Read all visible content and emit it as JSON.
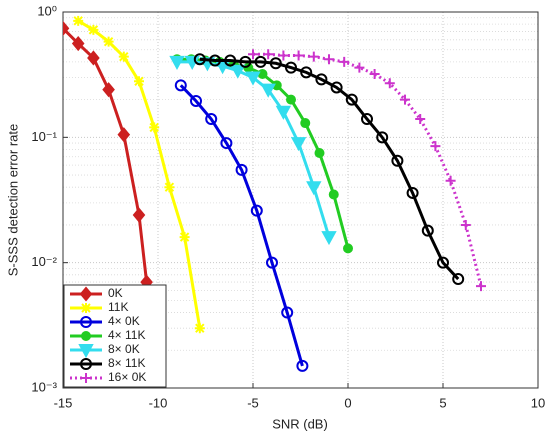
{
  "chart_data": {
    "type": "line",
    "xlabel": "SNR (dB)",
    "ylabel": "S-SSS detection error rate",
    "xlim": [
      -15,
      10
    ],
    "xticks": [
      -15,
      -10,
      -5,
      0,
      5,
      10
    ],
    "ylim": [
      0.001,
      1
    ],
    "log_y": true,
    "yticks": [
      {
        "value": 0.001,
        "label": "10⁻³"
      },
      {
        "value": 0.01,
        "label": "10⁻²"
      },
      {
        "value": 0.1,
        "label": "10⁻¹"
      },
      {
        "value": 1,
        "label": "10⁰"
      }
    ],
    "grid": true,
    "minor_grid": true,
    "legend": "lower left",
    "series": [
      {
        "name": "0K",
        "color": "#cc2020",
        "marker": "diamond",
        "line": "solid",
        "x": [
          -15,
          -14.2,
          -13.4,
          -12.6,
          -11.8,
          -11,
          -10.6
        ],
        "values": [
          0.74,
          0.56,
          0.43,
          0.24,
          0.105,
          0.024,
          0.007
        ]
      },
      {
        "name": "11K",
        "color": "#ffff00",
        "marker": "star",
        "line": "solid",
        "x": [
          -14.2,
          -13.4,
          -12.6,
          -11.8,
          -11,
          -10.2,
          -9.4,
          -8.6,
          -7.8
        ],
        "values": [
          0.85,
          0.72,
          0.58,
          0.44,
          0.28,
          0.12,
          0.04,
          0.016,
          0.003
        ]
      },
      {
        "name": "4× 0K",
        "color": "#0000dd",
        "marker": "circle",
        "line": "solid",
        "x": [
          -8.8,
          -8,
          -7.2,
          -6.4,
          -5.6,
          -4.8,
          -4,
          -3.2,
          -2.4
        ],
        "values": [
          0.26,
          0.195,
          0.14,
          0.09,
          0.055,
          0.026,
          0.01,
          0.004,
          0.0015
        ]
      },
      {
        "name": "4× 11K",
        "color": "#22cc22",
        "marker": "dot",
        "line": "solid",
        "x": [
          -9,
          -8.25,
          -7.5,
          -6.75,
          -6,
          -5.25,
          -4.5,
          -3.75,
          -3,
          -2.25,
          -1.5,
          -0.75,
          0
        ],
        "values": [
          0.42,
          0.42,
          0.41,
          0.4,
          0.38,
          0.36,
          0.32,
          0.26,
          0.2,
          0.13,
          0.075,
          0.035,
          0.013
        ]
      },
      {
        "name": "8× 0K",
        "color": "#33ddee",
        "marker": "triangle",
        "line": "solid",
        "x": [
          -9,
          -8.2,
          -7.4,
          -6.6,
          -5.8,
          -5,
          -4.2,
          -3.4,
          -2.6,
          -1.8,
          -1
        ],
        "values": [
          0.4,
          0.4,
          0.39,
          0.37,
          0.34,
          0.3,
          0.24,
          0.16,
          0.09,
          0.04,
          0.016
        ]
      },
      {
        "name": "8× 11K",
        "color": "#000000",
        "marker": "circle",
        "line": "solid",
        "x": [
          -7.8,
          -7,
          -6.2,
          -5.4,
          -4.6,
          -3.8,
          -3,
          -2.2,
          -1.4,
          -0.6,
          0.2,
          1,
          1.8,
          2.6,
          3.4,
          4.2,
          5,
          5.8
        ],
        "values": [
          0.42,
          0.41,
          0.41,
          0.4,
          0.4,
          0.39,
          0.36,
          0.33,
          0.29,
          0.25,
          0.2,
          0.14,
          0.1,
          0.065,
          0.036,
          0.018,
          0.01,
          0.0074
        ]
      },
      {
        "name": "16× 0K",
        "color": "#cc33cc",
        "marker": "plus",
        "line": "dotted",
        "x": [
          -5,
          -4.2,
          -3.4,
          -2.6,
          -1.8,
          -1,
          -0.2,
          0.6,
          1.4,
          2.2,
          3,
          3.8,
          4.6,
          5.4,
          6.2,
          7
        ],
        "values": [
          0.46,
          0.46,
          0.45,
          0.45,
          0.44,
          0.42,
          0.4,
          0.36,
          0.32,
          0.27,
          0.2,
          0.14,
          0.085,
          0.045,
          0.02,
          0.0065
        ]
      }
    ]
  }
}
